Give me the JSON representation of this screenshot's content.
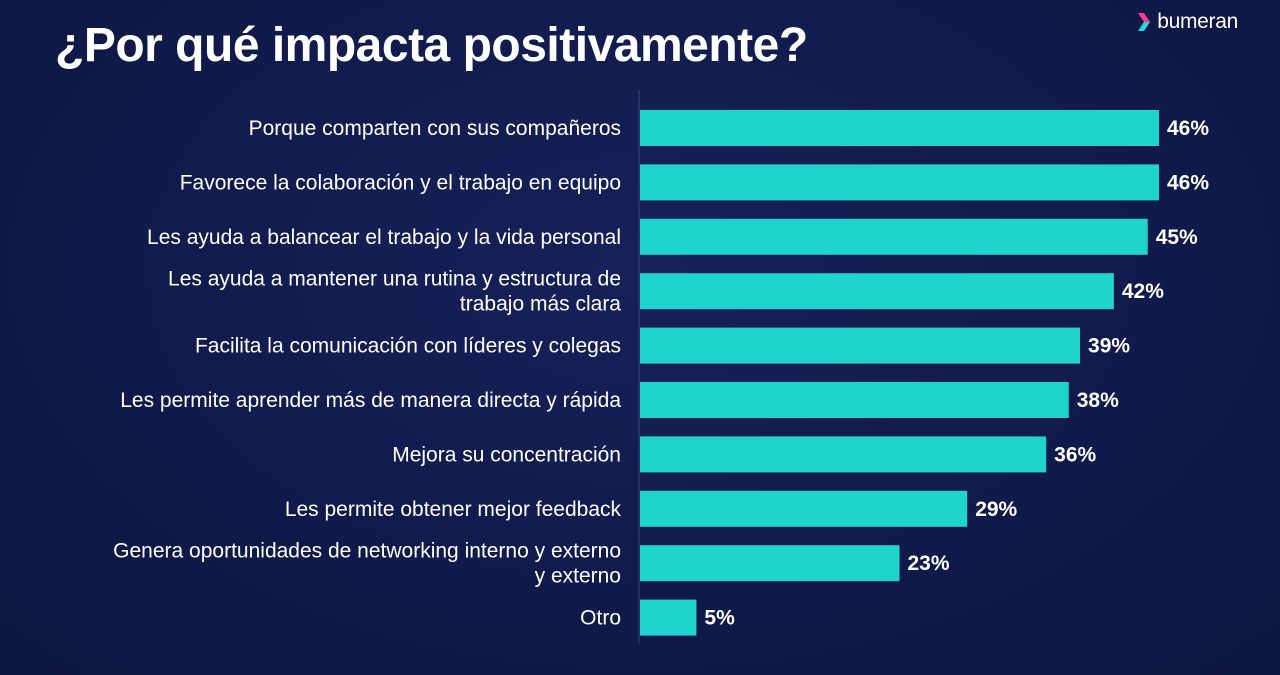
{
  "title": "¿Por qué impacta positivamente?",
  "brand": {
    "name": "bumeran",
    "icon": "chevron-right-logo-icon",
    "icon_colors": [
      "#ff3d8b",
      "#28d8e0"
    ]
  },
  "colors": {
    "background": "#101a4a",
    "bar": "#1fd3cf",
    "text": "#ffffff",
    "axis": "#3a4580"
  },
  "chart_data": {
    "type": "bar",
    "orientation": "horizontal",
    "title": "¿Por qué impacta positivamente?",
    "xlabel": "",
    "ylabel": "",
    "xlim": [
      0,
      46
    ],
    "grid": false,
    "legend": "none",
    "categories": [
      [
        "Porque comparten con sus compañeros"
      ],
      [
        "Favorece la colaboración y el trabajo en equipo"
      ],
      [
        "Les ayuda a balancear el trabajo y la vida personal"
      ],
      [
        "Les ayuda a mantener una rutina y estructura de",
        "trabajo más clara"
      ],
      [
        "Facilita la comunicación con líderes y colegas"
      ],
      [
        "Les permite aprender más de manera directa y rápida"
      ],
      [
        "Mejora su concentración"
      ],
      [
        "Les permite obtener mejor feedback"
      ],
      [
        "Genera oportunidades de networking interno y externo",
        "y externo"
      ],
      [
        "Otro"
      ]
    ],
    "values": [
      46,
      46,
      45,
      42,
      39,
      38,
      36,
      29,
      23,
      5
    ],
    "value_labels": [
      "46%",
      "46%",
      "45%",
      "42%",
      "39%",
      "38%",
      "36%",
      "29%",
      "23%",
      "5%"
    ]
  }
}
